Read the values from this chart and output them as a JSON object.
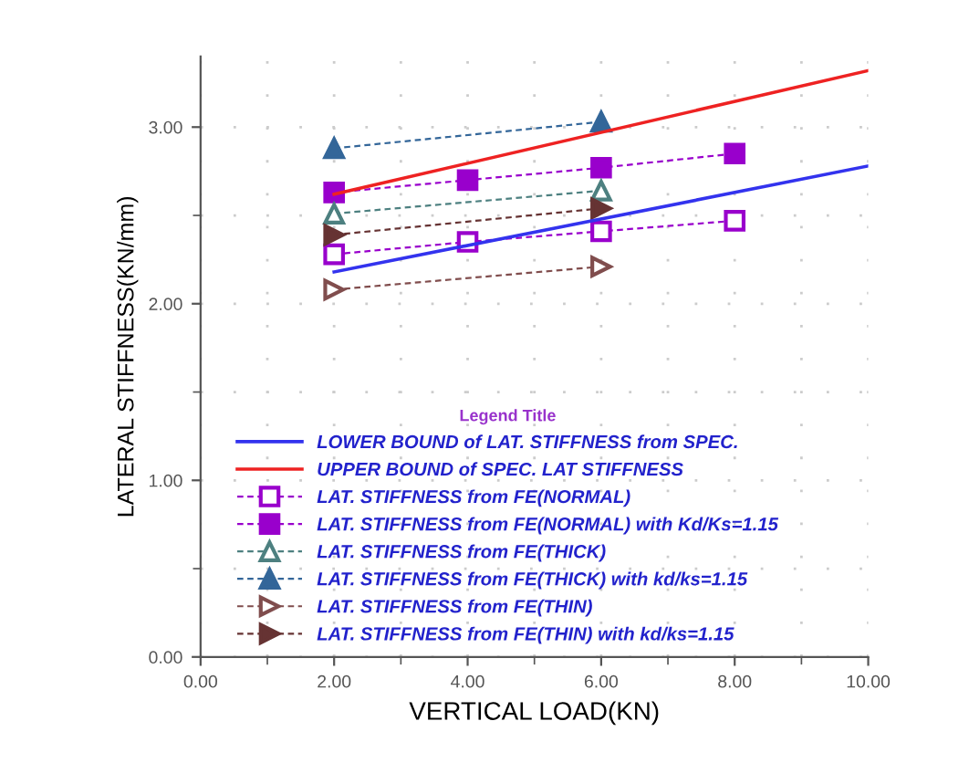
{
  "chart_data": {
    "type": "line",
    "xlabel": "VERTICAL LOAD(KN)",
    "ylabel": "LATERAL STIFFNESS(KN/mm)",
    "legend_title": "Legend Title",
    "xlim": [
      0,
      10
    ],
    "ylim": [
      0,
      3.4
    ],
    "xticks": [
      {
        "value": 0,
        "label": "0.00"
      },
      {
        "value": 2,
        "label": "2.00"
      },
      {
        "value": 4,
        "label": "4.00"
      },
      {
        "value": 6,
        "label": "6.00"
      },
      {
        "value": 8,
        "label": "8.00"
      },
      {
        "value": 10,
        "label": "10.00"
      }
    ],
    "yticks": [
      {
        "value": 0,
        "label": "0.00"
      },
      {
        "value": 1,
        "label": "1.00"
      },
      {
        "value": 2,
        "label": "2.00"
      },
      {
        "value": 3,
        "label": "3.00"
      }
    ],
    "grid": true,
    "legend": "bottom",
    "series": [
      {
        "name": "LOWER BOUND of LAT. STIFFNESS from SPEC.",
        "color": "#3333ee",
        "x": [
          2,
          10
        ],
        "values": [
          2.18,
          2.78
        ],
        "marker": "none",
        "line_style": "solid"
      },
      {
        "name": "UPPER BOUND of SPEC. LAT STIFFNESS",
        "color": "#ee2222",
        "x": [
          2,
          10
        ],
        "values": [
          2.62,
          3.32
        ],
        "marker": "none",
        "line_style": "solid"
      },
      {
        "name": "LAT. STIFFNESS from FE(NORMAL)",
        "color": "#9900cc",
        "x": [
          2,
          4,
          6,
          8
        ],
        "values": [
          2.28,
          2.35,
          2.41,
          2.47
        ],
        "marker": "square-open",
        "line_style": "dashed"
      },
      {
        "name": "LAT. STIFFNESS from FE(NORMAL) with Kd/Ks=1.15",
        "color": "#9900cc",
        "x": [
          2,
          4,
          6,
          8
        ],
        "values": [
          2.63,
          2.7,
          2.77,
          2.85
        ],
        "marker": "square",
        "line_style": "dashed"
      },
      {
        "name": "LAT. STIFFNESS from FE(THICK)",
        "color": "#4d8080",
        "x": [
          2,
          6
        ],
        "values": [
          2.51,
          2.64
        ],
        "marker": "triangle-open",
        "line_style": "dashed"
      },
      {
        "name": "LAT. STIFFNESS from FE(THICK) with kd/ks=1.15",
        "color": "#336699",
        "x": [
          2,
          6
        ],
        "values": [
          2.88,
          3.03
        ],
        "marker": "triangle",
        "line_style": "dashed"
      },
      {
        "name": "LAT. STIFFNESS from FE(THIN)",
        "color": "#804d4d",
        "x": [
          2,
          6
        ],
        "values": [
          2.08,
          2.21
        ],
        "marker": "triangle-right-open",
        "line_style": "dashed"
      },
      {
        "name": "LAT. STIFFNESS from FE(THIN) with kd/ks=1.15",
        "color": "#663333",
        "x": [
          2,
          6
        ],
        "values": [
          2.39,
          2.54
        ],
        "marker": "triangle-right",
        "line_style": "dashed"
      }
    ]
  }
}
